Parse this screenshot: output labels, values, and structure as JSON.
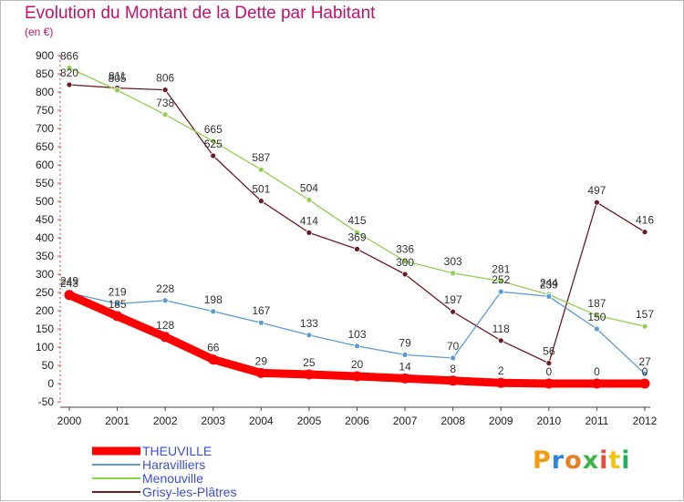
{
  "title": "Evolution du Montant de la Dette par Habitant",
  "subtitle": "(en €)",
  "logo": "Proxiti",
  "chart_data": {
    "type": "line",
    "title": "Evolution du Montant de la Dette par Habitant",
    "ylabel": "(en €)",
    "xlabel": "",
    "x": [
      "2000",
      "2001",
      "2002",
      "2003",
      "2004",
      "2005",
      "2006",
      "2007",
      "2008",
      "2009",
      "2010",
      "2011",
      "2012"
    ],
    "ylim": [
      -50,
      900
    ],
    "yticks": [
      -50,
      0,
      50,
      100,
      150,
      200,
      250,
      300,
      350,
      400,
      450,
      500,
      550,
      600,
      650,
      700,
      750,
      800,
      850,
      900
    ],
    "grid": false,
    "legend_position": "bottom-left",
    "series": [
      {
        "name": "THEUVILLE",
        "color": "#ff0000",
        "values": [
          243,
          185,
          128,
          66,
          29,
          25,
          20,
          14,
          8,
          2,
          0,
          0,
          0
        ]
      },
      {
        "name": "Haravilliers",
        "color": "#5b9bd5",
        "values": [
          249,
          219,
          228,
          198,
          167,
          133,
          103,
          79,
          70,
          252,
          239,
          150,
          27
        ]
      },
      {
        "name": "Menouville",
        "color": "#8fd14f",
        "values": [
          866,
          805,
          738,
          665,
          587,
          504,
          415,
          336,
          303,
          281,
          244,
          187,
          157
        ]
      },
      {
        "name": "Grisy-les-Plâtres",
        "color": "#6b1b22",
        "values": [
          820,
          811,
          806,
          625,
          501,
          414,
          369,
          300,
          197,
          118,
          56,
          497,
          416
        ]
      }
    ]
  }
}
